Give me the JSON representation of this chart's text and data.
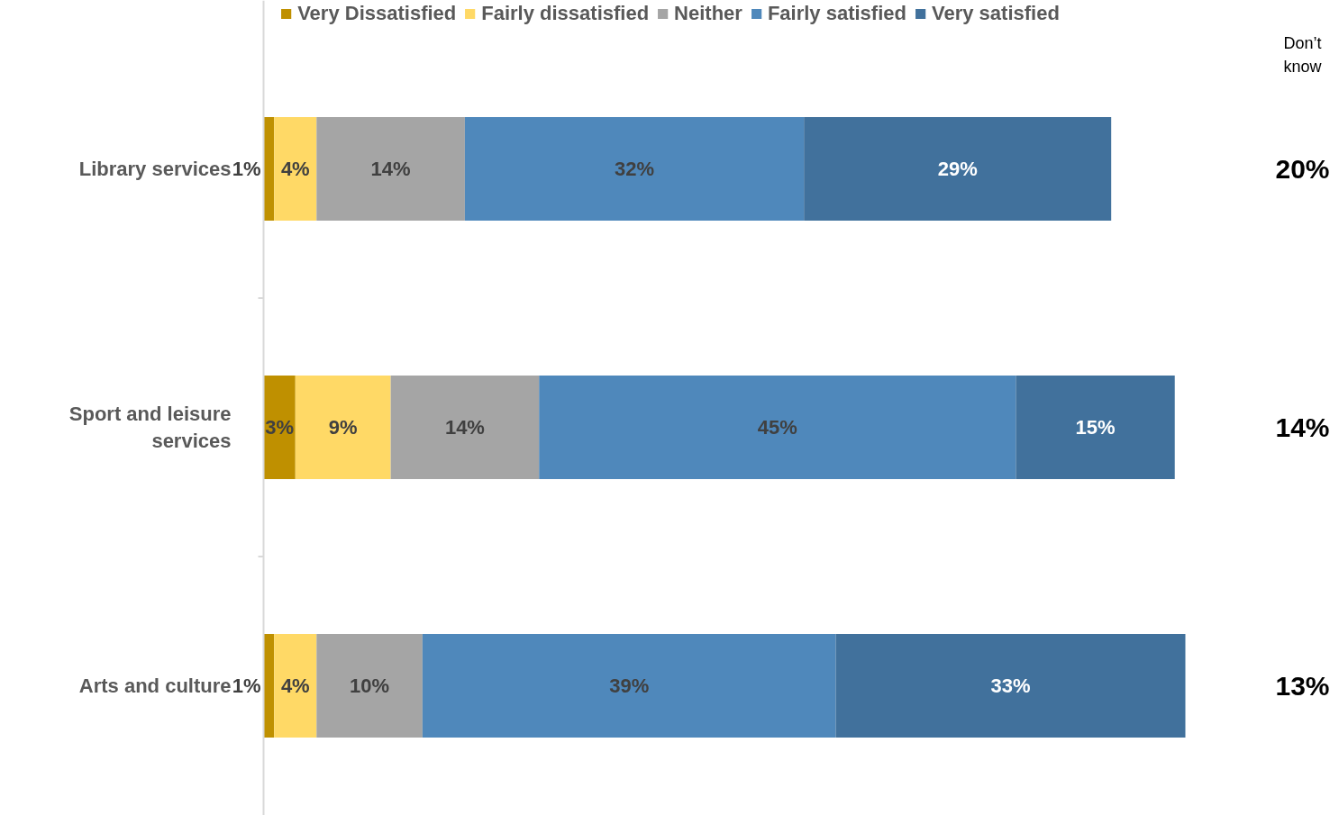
{
  "chart_data": {
    "type": "bar",
    "orientation": "horizontal",
    "stacked": true,
    "legend": "top",
    "grid": false,
    "categories": [
      "Library services",
      "Sport and leisure services",
      "Arts and culture"
    ],
    "series": [
      {
        "name": "Very Dissatisfied",
        "color": "#bf9000",
        "values": [
          1,
          3,
          1
        ],
        "value_labels": [
          "1%",
          "3%",
          "1%"
        ]
      },
      {
        "name": "Fairly dissatisfied",
        "color": "#ffd966",
        "values": [
          4,
          9,
          4
        ],
        "value_labels": [
          "4%",
          "9%",
          "4%"
        ]
      },
      {
        "name": "Neither",
        "color": "#a5a5a5",
        "values": [
          14,
          14,
          10
        ],
        "value_labels": [
          "14%",
          "14%",
          "10%"
        ]
      },
      {
        "name": "Fairly satisfied",
        "color": "#4f88bb",
        "values": [
          32,
          45,
          39
        ],
        "value_labels": [
          "32%",
          "45%",
          "39%"
        ]
      },
      {
        "name": "Very satisfied",
        "color": "#41719c",
        "values": [
          29,
          15,
          33
        ],
        "value_labels": [
          "29%",
          "15%",
          "33%"
        ]
      }
    ],
    "annotations": [
      "Don’t know",
      "20%",
      "14%",
      "13%"
    ]
  }
}
